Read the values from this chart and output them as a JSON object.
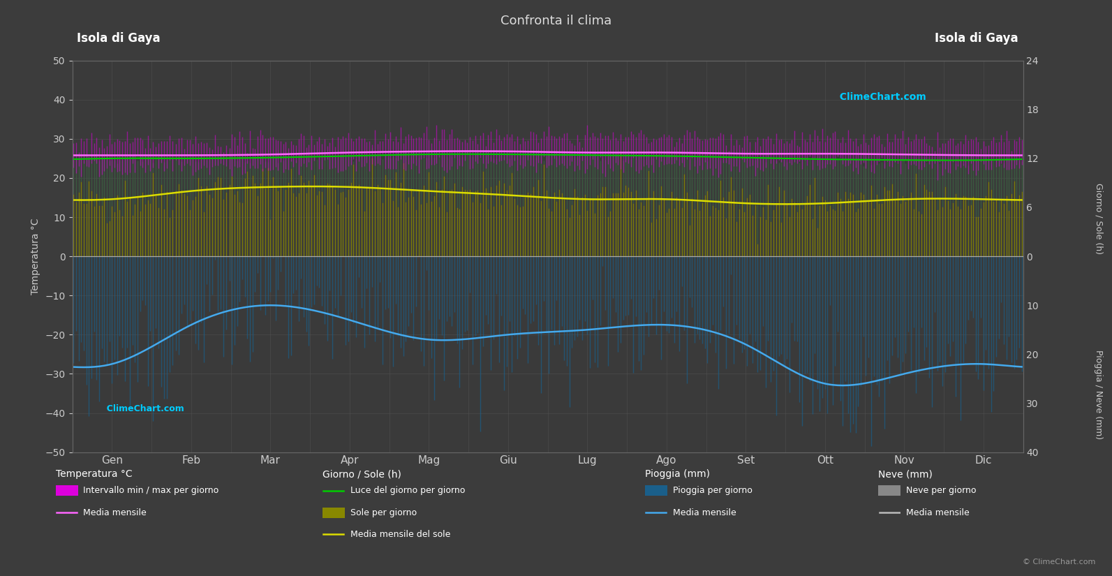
{
  "title": "Confronta il clima",
  "subtitle_left": "Isola di Gaya",
  "subtitle_right": "Isola di Gaya",
  "months": [
    "Gen",
    "Feb",
    "Mar",
    "Apr",
    "Mag",
    "Giu",
    "Lug",
    "Ago",
    "Set",
    "Ott",
    "Nov",
    "Dic"
  ],
  "days_per_month": [
    31,
    28,
    31,
    30,
    31,
    30,
    31,
    31,
    30,
    31,
    30,
    31
  ],
  "temp_ylim": [
    -50,
    50
  ],
  "background_color": "#3c3c3c",
  "plot_bg_color": "#3a3a3a",
  "grid_color": "#555555",
  "temp_min_monthly": [
    22.5,
    22.5,
    22.5,
    23.0,
    23.0,
    23.0,
    23.0,
    23.0,
    23.0,
    23.0,
    23.0,
    22.5
  ],
  "temp_max_monthly": [
    29.0,
    29.0,
    29.5,
    30.0,
    30.5,
    30.5,
    30.5,
    30.5,
    30.0,
    30.0,
    29.5,
    29.0
  ],
  "temp_mean_monthly": [
    25.8,
    25.8,
    26.0,
    26.5,
    26.8,
    26.8,
    26.5,
    26.5,
    26.2,
    26.2,
    26.0,
    25.8
  ],
  "daylight_hours_monthly": [
    12.0,
    12.0,
    12.1,
    12.3,
    12.5,
    12.5,
    12.4,
    12.3,
    12.1,
    11.9,
    11.8,
    11.8
  ],
  "sunshine_hours_monthly": [
    7.0,
    8.0,
    8.5,
    8.5,
    8.0,
    7.5,
    7.0,
    7.0,
    6.5,
    6.5,
    7.0,
    7.0
  ],
  "rain_mean_monthly_mm": [
    22,
    14,
    10,
    13,
    17,
    16,
    15,
    14,
    18,
    26,
    24,
    22
  ],
  "rain_daily_noise_std": 6,
  "temp_band_color": "#dd00dd",
  "temp_mean_line_color": "#ff66ff",
  "daylight_bar_color": "#3a6040",
  "sunshine_bar_color": "#888800",
  "sunshine_mean_color": "#dddd00",
  "rain_bar_color": "#1a5f8a",
  "rain_mean_color": "#44aaee",
  "snow_bar_color": "#888888",
  "snow_mean_color": "#bbbbbb",
  "title_color": "#dddddd",
  "tick_color": "#cccccc",
  "label_color": "#cccccc",
  "watermark_top_color": "#00ccff",
  "watermark_bottom_color": "#00ccff",
  "sun_scale_max": 24,
  "rain_scale_max": 40,
  "right_axis_ticks_sun": [
    0,
    6,
    12,
    18,
    24
  ],
  "right_axis_ticks_rain": [
    0,
    10,
    20,
    30,
    40
  ]
}
